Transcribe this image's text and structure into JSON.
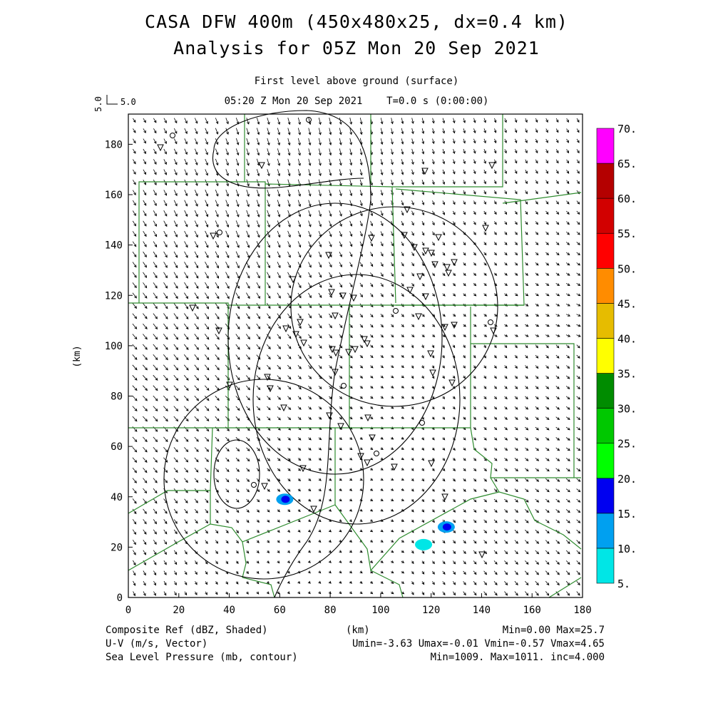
{
  "chart_data": {
    "type": "map",
    "title": "CASA DFW 400m (450x480x25, dx=0.4 km)",
    "subtitle": "Analysis for 05Z Mon 20 Sep 2021",
    "level_label": "First level above ground (surface)",
    "time_label": "05:20 Z Mon 20 Sep 2021    T=0.0 s (0:00:00)",
    "vector_scale": {
      "value_label": "5.0",
      "key_label": "5.0"
    },
    "xlabel": "(km)",
    "ylabel": "(km)",
    "xlim": [
      0,
      180
    ],
    "ylim": [
      0,
      192
    ],
    "xticks": [
      "0",
      "20",
      "40",
      "60",
      "80",
      "100",
      "120",
      "140",
      "160",
      "180"
    ],
    "yticks": [
      "0",
      "20",
      "40",
      "60",
      "80",
      "100",
      "120",
      "140",
      "160",
      "180"
    ],
    "colorbar": {
      "labels": [
        "5.",
        "10.",
        "15.",
        "20.",
        "25.",
        "30.",
        "35.",
        "40.",
        "45.",
        "50.",
        "55.",
        "60.",
        "65.",
        "70."
      ],
      "colors": [
        "#00e6e6",
        "#00a0f0",
        "#0000f0",
        "#00ff00",
        "#00c800",
        "#008c00",
        "#ffff00",
        "#e6bc00",
        "#ff8c00",
        "#ff0000",
        "#d20000",
        "#b40000",
        "#ff00ff"
      ]
    },
    "reflectivity_patches": [
      {
        "x": 62,
        "y": 39,
        "dbz": 15
      },
      {
        "x": 117,
        "y": 21,
        "dbz": 8
      },
      {
        "x": 126,
        "y": 28,
        "dbz": 15
      }
    ],
    "pressure_contour_labels": [],
    "footer": {
      "l1_left": "Composite Ref (dBZ, Shaded)",
      "l1_mid": "(km)",
      "l1_right": "Min=0.00 Max=25.7",
      "l2_left": "U-V (m/s, Vector)",
      "l2_right": "Umin=-3.63 Umax=-0.01 Vmin=-0.57 Vmax=4.65",
      "l3_left": "Sea Level Pressure (mb, contour)",
      "l3_right": "Min=1009. Max=1011. inc=4.000"
    }
  }
}
